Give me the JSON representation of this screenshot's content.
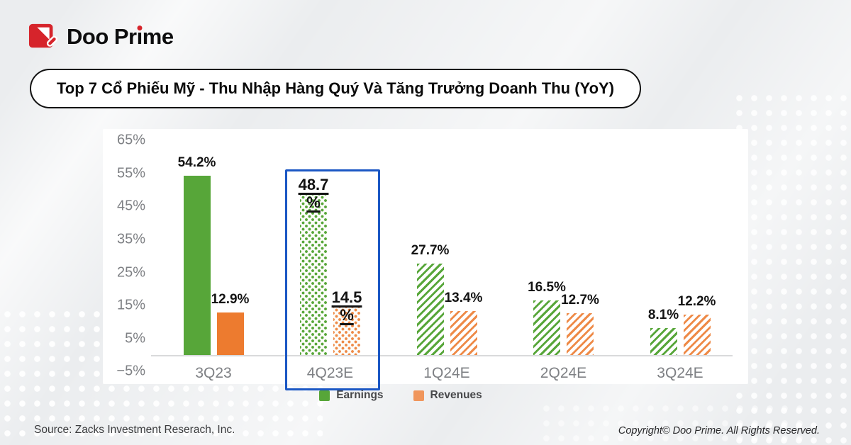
{
  "logo": {
    "text": "Doo Prime",
    "pre": "Doo Pr",
    "i": "ı",
    "post": "me",
    "brand_red": "#d6242b"
  },
  "header": {
    "title": "Top 7 Cổ Phiếu Mỹ - Thu Nhập Hàng Quý Và Tăng Trưởng Doanh Thu (YoY)"
  },
  "chart_data": {
    "type": "bar",
    "categories": [
      "3Q23",
      "4Q23E",
      "1Q24E",
      "2Q24E",
      "3Q24E"
    ],
    "series": [
      {
        "name": "Earnings",
        "color": "#57a639",
        "pattern_color": "#57a639",
        "values": [
          54.2,
          48.7,
          27.7,
          16.5,
          8.1
        ]
      },
      {
        "name": "Revenues",
        "color": "#ed7b2f",
        "pattern_color": "#ee8a47",
        "values": [
          12.9,
          14.5,
          13.4,
          12.7,
          12.2
        ]
      }
    ],
    "bar_styles": [
      "solid",
      "dotted",
      "hatch",
      "hatch",
      "hatch"
    ],
    "ytick_values": [
      65,
      55,
      45,
      35,
      25,
      15,
      5,
      -5
    ],
    "ytick_labels": [
      "65%",
      "55%",
      "45%",
      "35%",
      "25%",
      "15%",
      "5%",
      "−5%"
    ],
    "ylim": [
      -5,
      68
    ],
    "grid": false,
    "legend_position": "bottom",
    "highlight": {
      "category_index": 1,
      "box_color": "#1b57c4"
    },
    "value_label_suffix": "%"
  },
  "legend": [
    {
      "label": "Earnings",
      "color": "#57a639"
    },
    {
      "label": "Revenues",
      "color": "#f0965c"
    }
  ],
  "footer": {
    "source": "Source: Zacks Investment Reserach, Inc.",
    "copyright": "Copyright© Doo Prime. All Rights Reserved."
  }
}
